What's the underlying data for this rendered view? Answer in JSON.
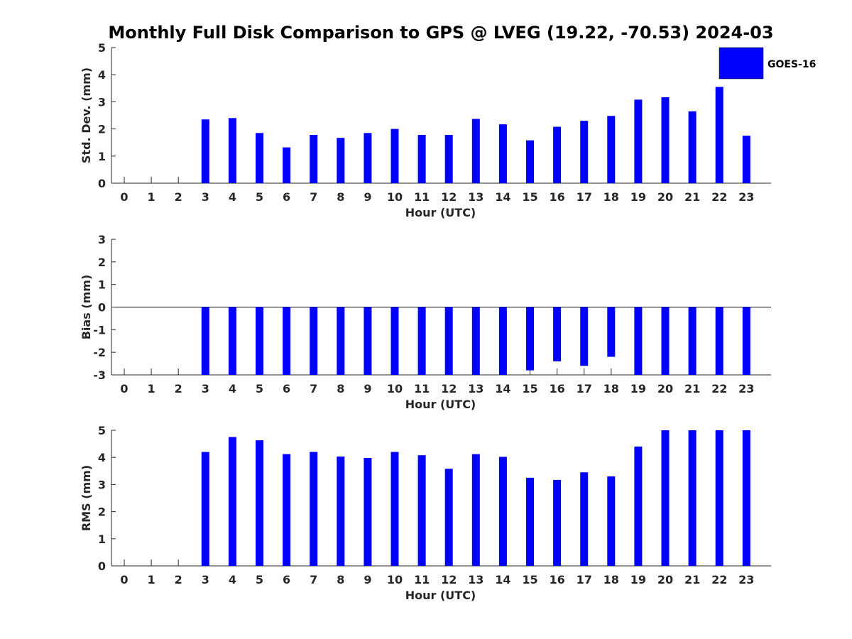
{
  "title": "Monthly Full Disk Comparison to GPS @ LVEG (19.22, -70.53) 2024-03",
  "legend": {
    "label": "GOES-16",
    "color": "#0000ff",
    "placement": "top-right"
  },
  "colors": {
    "bar": "#0000ff",
    "axis": "#262626",
    "zero_line": "#000000"
  },
  "chart_data": [
    {
      "type": "bar",
      "xlabel": "Hour (UTC)",
      "ylabel": "Std. Dev. (mm)",
      "ylim": [
        0,
        5
      ],
      "yticks": [
        0,
        1,
        2,
        3,
        4,
        5
      ],
      "categories": [
        "0",
        "1",
        "2",
        "3",
        "4",
        "5",
        "6",
        "7",
        "8",
        "9",
        "10",
        "11",
        "12",
        "13",
        "14",
        "15",
        "16",
        "17",
        "18",
        "19",
        "20",
        "21",
        "22",
        "23"
      ],
      "series": [
        {
          "name": "GOES-16",
          "values": [
            null,
            null,
            null,
            2.35,
            2.4,
            1.85,
            1.32,
            1.78,
            1.67,
            1.85,
            2.0,
            1.78,
            1.78,
            2.37,
            2.17,
            1.58,
            2.08,
            2.3,
            2.48,
            3.08,
            3.17,
            2.65,
            3.55,
            1.75
          ]
        }
      ],
      "grid": false
    },
    {
      "type": "bar",
      "xlabel": "Hour (UTC)",
      "ylabel": "Bias (mm)",
      "ylim": [
        -3,
        3
      ],
      "yticks": [
        -3,
        -2,
        -1,
        0,
        1,
        2,
        3
      ],
      "categories": [
        "0",
        "1",
        "2",
        "3",
        "4",
        "5",
        "6",
        "7",
        "8",
        "9",
        "10",
        "11",
        "12",
        "13",
        "14",
        "15",
        "16",
        "17",
        "18",
        "19",
        "20",
        "21",
        "22",
        "23"
      ],
      "series": [
        {
          "name": "GOES-16",
          "values": [
            null,
            null,
            null,
            -3.0,
            -3.0,
            -3.0,
            -3.0,
            -3.0,
            -3.0,
            -3.0,
            -3.0,
            -3.0,
            -3.0,
            -3.0,
            -3.0,
            -2.8,
            -2.4,
            -2.6,
            -2.2,
            -3.0,
            -3.0,
            -3.0,
            -3.0,
            -3.0
          ]
        }
      ],
      "zero_line": true,
      "grid": false
    },
    {
      "type": "bar",
      "xlabel": "Hour (UTC)",
      "ylabel": "RMS (mm)",
      "ylim": [
        0,
        5
      ],
      "yticks": [
        0,
        1,
        2,
        3,
        4,
        5
      ],
      "categories": [
        "0",
        "1",
        "2",
        "3",
        "4",
        "5",
        "6",
        "7",
        "8",
        "9",
        "10",
        "11",
        "12",
        "13",
        "14",
        "15",
        "16",
        "17",
        "18",
        "19",
        "20",
        "21",
        "22",
        "23"
      ],
      "series": [
        {
          "name": "GOES-16",
          "values": [
            null,
            null,
            null,
            4.2,
            4.75,
            4.63,
            4.12,
            4.2,
            4.03,
            3.98,
            4.2,
            4.08,
            3.58,
            4.12,
            4.02,
            3.25,
            3.17,
            3.45,
            3.3,
            4.4,
            5.0,
            5.0,
            5.0,
            5.0
          ]
        }
      ],
      "grid": false
    }
  ]
}
